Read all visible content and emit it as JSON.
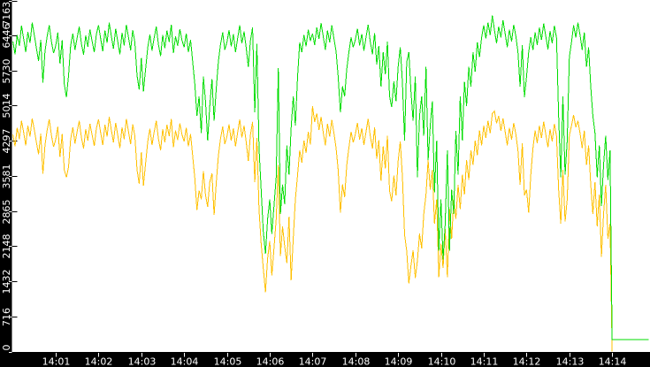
{
  "chart_data": {
    "type": "line",
    "title": "",
    "xlabel": "",
    "ylabel": "",
    "grid": false,
    "legend": "none",
    "background_color": "#ffffff",
    "axis_band_color": "#000000",
    "axis_text_color": "#ffffff",
    "x_axis": {
      "tick_labels": [
        "14:01",
        "14:02",
        "14:03",
        "14:04",
        "14:05",
        "14:06",
        "14:07",
        "14:08",
        "14:09",
        "14:10",
        "14:11",
        "14:12",
        "14:13",
        "14:14"
      ],
      "tick_minutes": [
        1,
        2,
        3,
        4,
        5,
        6,
        7,
        8,
        9,
        10,
        11,
        12,
        13,
        14
      ],
      "range_minutes": [
        0,
        14.9
      ]
    },
    "y_axis": {
      "tick_labels": [
        "0",
        "716",
        "1432",
        "2148",
        "2865",
        "3581",
        "4297",
        "5014",
        "5730",
        "6446",
        "7163"
      ],
      "ticks": [
        0,
        716,
        1432,
        2148,
        2865,
        3581,
        4297,
        5014,
        5730,
        6446,
        7163
      ],
      "min": 0,
      "max": 7163
    },
    "sample_step_seconds": 3,
    "series": [
      {
        "name": "orange",
        "color": "#ffc000",
        "values": [
          4420,
          4180,
          4560,
          4330,
          4700,
          4470,
          4200,
          4600,
          4380,
          4750,
          4520,
          4260,
          4020,
          4440,
          3620,
          4210,
          4510,
          4730,
          4400,
          4170,
          4320,
          4580,
          3960,
          4430,
          3700,
          3550,
          3760,
          4330,
          4570,
          4240,
          4480,
          4700,
          4370,
          4140,
          4530,
          4300,
          4640,
          4420,
          4190,
          4550,
          4730,
          4460,
          4210,
          4620,
          4380,
          4780,
          4510,
          4260,
          4660,
          4400,
          4150,
          4570,
          4330,
          4740,
          4480,
          4230,
          4630,
          4390,
          3700,
          3420,
          4060,
          3380,
          3830,
          4280,
          4540,
          4210,
          4470,
          4700,
          4330,
          4100,
          4530,
          4260,
          4620,
          4390,
          4740,
          4160,
          4500,
          4310,
          4650,
          4420,
          4280,
          4560,
          4180,
          4430,
          3980,
          3530,
          2880,
          3280,
          3100,
          3680,
          3190,
          2950,
          3450,
          3630,
          2780,
          3430,
          3980,
          4330,
          4580,
          4230,
          4380,
          4630,
          4300,
          4550,
          4180,
          4460,
          4730,
          4360,
          4600,
          4270,
          3880,
          4420,
          4680,
          3450,
          4350,
          2900,
          2200,
          1700,
          1210,
          1900,
          2250,
          1550,
          2100,
          2700,
          3800,
          1950,
          2550,
          2150,
          1800,
          2750,
          1450,
          2300,
          3100,
          3600,
          4100,
          3850,
          4300,
          4050,
          4480,
          4220,
          5000,
          4680,
          4850,
          4520,
          4780,
          4460,
          4200,
          4640,
          4380,
          4720,
          4450,
          4150,
          3700,
          2830,
          3400,
          3150,
          3800,
          4150,
          4480,
          4260,
          4430,
          4660,
          4320,
          4550,
          4210,
          4480,
          4740,
          4390,
          4140,
          4570,
          3930,
          4310,
          3480,
          4180,
          3730,
          4400,
          3280,
          3060,
          3580,
          3180,
          3880,
          4280,
          3580,
          2380,
          2050,
          1390,
          1750,
          2060,
          1500,
          1850,
          2400,
          2100,
          2800,
          3200,
          3900,
          3300,
          3700,
          2600,
          3100,
          1515,
          2200,
          1700,
          2500,
          1515,
          2900,
          2300,
          3100,
          2700,
          3400,
          2900,
          3600,
          3200,
          3900,
          3500,
          4100,
          3800,
          4300,
          4000,
          4500,
          4200,
          4600,
          4350,
          4700,
          4450,
          4850,
          4900,
          4650,
          4800,
          4500,
          4750,
          4480,
          4200,
          4560,
          4320,
          4660,
          4430,
          4100,
          3400,
          4240,
          3180,
          3300,
          2830,
          3600,
          4150,
          4500,
          4250,
          4600,
          4350,
          4680,
          4420,
          4160,
          4530,
          4280,
          4640,
          4390,
          3300,
          2600,
          3700,
          2650,
          3100,
          4400,
          4600,
          4820,
          4570,
          4700,
          4450,
          4150,
          4500,
          3800,
          4200,
          3400,
          2800,
          3450,
          2550,
          3200,
          1930,
          2800,
          3400,
          2300,
          2600,
          0
        ]
      },
      {
        "name": "green",
        "color": "#00dd00",
        "values": [
          6320,
          6060,
          6450,
          6230,
          6640,
          6380,
          6100,
          6510,
          6290,
          6700,
          6450,
          6180,
          5920,
          6350,
          5480,
          6120,
          6420,
          6650,
          6310,
          6080,
          6230,
          6500,
          5870,
          6340,
          5450,
          5180,
          5620,
          6240,
          6480,
          6150,
          6390,
          6620,
          6280,
          6050,
          6440,
          6210,
          6560,
          6330,
          6100,
          6470,
          6650,
          6380,
          6120,
          6540,
          6290,
          6700,
          6430,
          6170,
          6580,
          6310,
          6060,
          6490,
          6240,
          6660,
          6400,
          6140,
          6550,
          6300,
          5620,
          5340,
          5980,
          5300,
          5750,
          6200,
          6460,
          6130,
          6390,
          6620,
          6250,
          6020,
          6450,
          6180,
          6540,
          6310,
          6660,
          6080,
          6420,
          6230,
          6570,
          6340,
          6200,
          6480,
          6100,
          6350,
          5900,
          5450,
          4800,
          5200,
          4450,
          5600,
          5100,
          4300,
          5000,
          5550,
          4700,
          5350,
          5900,
          6250,
          6500,
          6150,
          6300,
          6550,
          6220,
          6470,
          6100,
          6380,
          6650,
          6280,
          6520,
          6190,
          5800,
          6340,
          6600,
          4870,
          6270,
          4150,
          3300,
          2450,
          1990,
          2700,
          3100,
          2400,
          2960,
          3550,
          5775,
          2800,
          3400,
          3000,
          4200,
          3600,
          4550,
          5200,
          4600,
          5600,
          6300,
          6100,
          6450,
          6220,
          6560,
          6330,
          6480,
          6250,
          6600,
          6370,
          6690,
          6420,
          6150,
          6540,
          6300,
          6650,
          6380,
          6120,
          5600,
          4870,
          5400,
          5200,
          5750,
          6100,
          6400,
          6200,
          6350,
          6580,
          6240,
          6470,
          6130,
          6400,
          6660,
          6310,
          6060,
          6490,
          5850,
          6230,
          5400,
          6100,
          5650,
          6320,
          5200,
          4980,
          5500,
          5100,
          5800,
          6200,
          5500,
          4300,
          5900,
          6100,
          5300,
          4700,
          5600,
          3550,
          4800,
          5200,
          4400,
          5800,
          3900,
          4600,
          5100,
          3245,
          4300,
          2055,
          3100,
          1875,
          2600,
          4100,
          2055,
          3300,
          2800,
          4500,
          3600,
          5200,
          4300,
          5500,
          5000,
          5800,
          5400,
          6100,
          5700,
          6300,
          6000,
          6400,
          6650,
          6380,
          6700,
          6450,
          6850,
          6550,
          6280,
          6620,
          6400,
          6750,
          6480,
          6200,
          6560,
          6320,
          6660,
          6430,
          6100,
          5400,
          6240,
          5180,
          5600,
          6100,
          6400,
          6150,
          6500,
          6250,
          6600,
          6350,
          6680,
          6420,
          6160,
          6530,
          6280,
          6640,
          6390,
          4800,
          3550,
          5200,
          3600,
          4300,
          6000,
          6300,
          6650,
          6400,
          6700,
          6450,
          6150,
          6500,
          5800,
          6200,
          5400,
          4800,
          4450,
          3550,
          4200,
          2960,
          3800,
          4400,
          3500,
          4100,
          240,
          240,
          240,
          240,
          240,
          240,
          240,
          240,
          240,
          240,
          240,
          240,
          240,
          240,
          240,
          240,
          240,
          240
        ]
      }
    ]
  }
}
